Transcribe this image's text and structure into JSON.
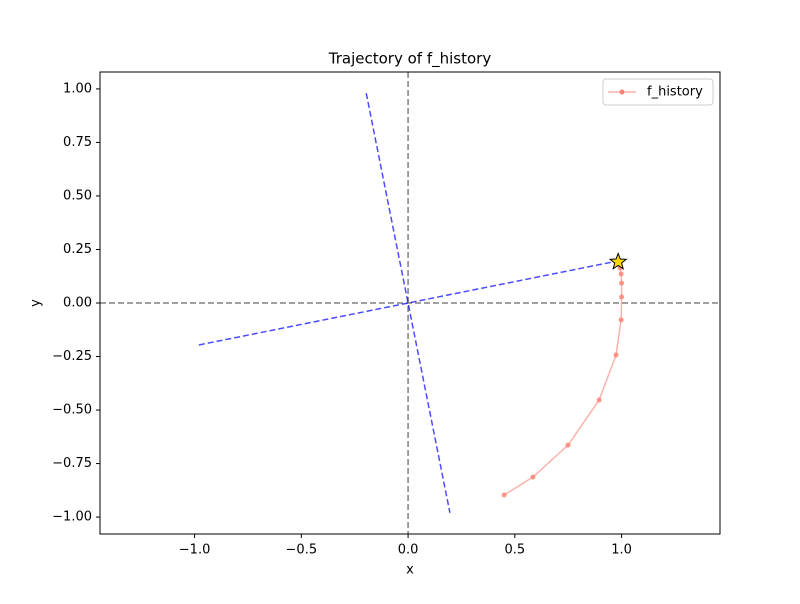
{
  "chart_data": {
    "type": "line",
    "title": "Trajectory of f_history",
    "xlabel": "x",
    "ylabel": "y",
    "series": [
      {
        "name": "f_history",
        "color": "#fa8072",
        "x": [
          0.45,
          0.585,
          0.749,
          0.895,
          0.974,
          0.998,
          1.0,
          1.0,
          0.998,
          0.993,
          0.984
        ],
        "values": [
          -0.897,
          -0.813,
          -0.664,
          -0.453,
          -0.243,
          -0.079,
          0.028,
          0.093,
          0.136,
          0.164,
          0.192
        ]
      }
    ],
    "final_marker": {
      "x": 0.984,
      "y": 0.192,
      "color": "#ffd700"
    },
    "reference_lines": [
      {
        "x": [
          -0.98,
          0.98
        ],
        "y": [
          -0.196,
          0.196
        ],
        "color": "#0000ff"
      },
      {
        "x": [
          -0.196,
          0.196
        ],
        "y": [
          0.98,
          -0.98
        ],
        "color": "#0000ff"
      }
    ],
    "hlines": [
      0
    ],
    "vlines": [
      0
    ],
    "axis_line_color": "#808080",
    "xlim": [
      -1.443,
      1.461
    ],
    "ylim": [
      -1.079,
      1.079
    ],
    "xticks": [
      {
        "value": -1,
        "label": "−1.0"
      },
      {
        "value": -0.5,
        "label": "−0.5"
      },
      {
        "value": 0,
        "label": "0.0"
      },
      0.5,
      {
        "value": 1,
        "label": "1.0"
      }
    ],
    "yticks": [
      {
        "value": 1,
        "label": "1.00"
      },
      0.75,
      {
        "value": 0.5,
        "label": "0.50"
      },
      0.25,
      {
        "value": 0,
        "label": "0.00"
      },
      {
        "value": -0.25,
        "label": "−0.25"
      },
      {
        "value": -0.5,
        "label": "−0.50"
      },
      {
        "value": -0.75,
        "label": "−0.75"
      },
      {
        "value": -1,
        "label": "−1.00"
      }
    ],
    "legend": "upper right"
  }
}
